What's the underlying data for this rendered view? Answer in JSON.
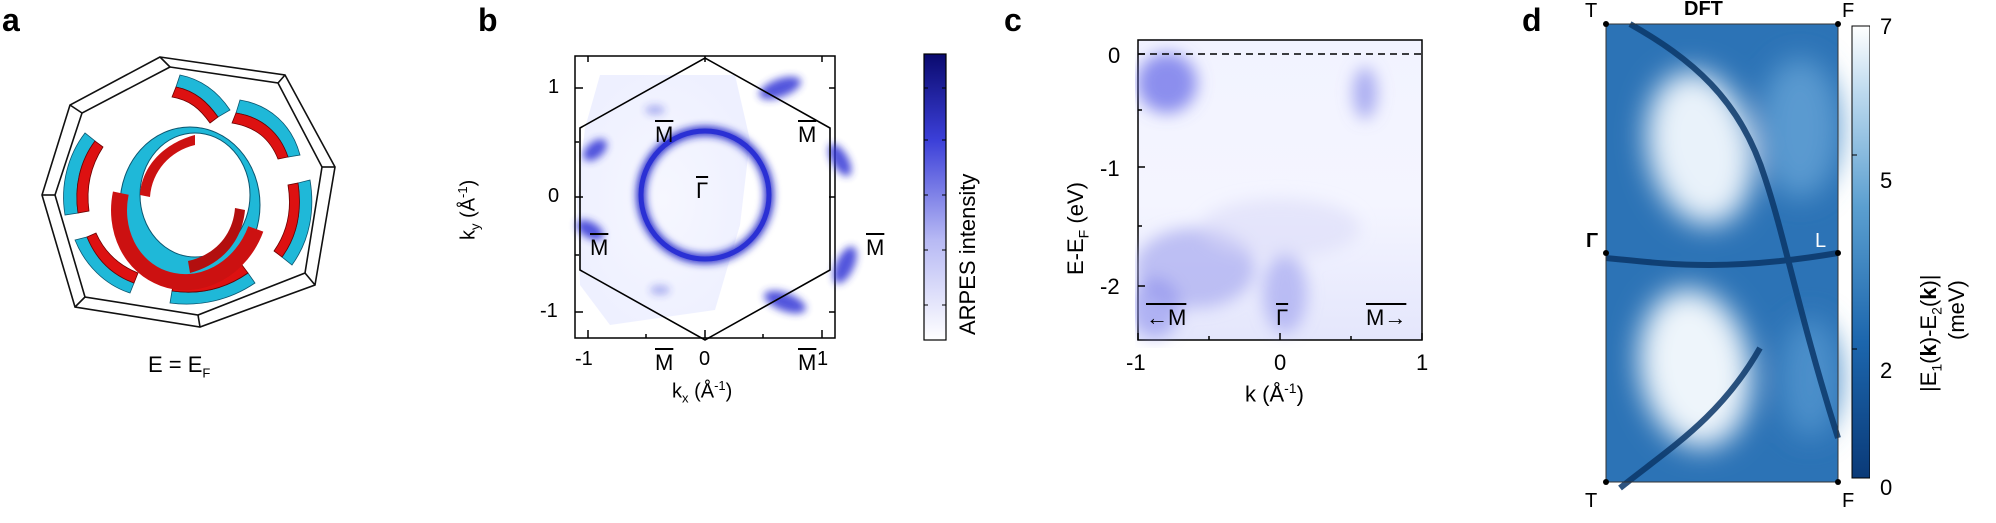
{
  "panels": {
    "a": {
      "letter": "a",
      "caption": "E = E",
      "caption_sub": "F"
    },
    "b": {
      "letter": "b",
      "xlabel_main": "k",
      "xlabel_sub": "x",
      "xlabel_unit": "(Å",
      "xlabel_sup": "-1",
      "xlabel_close": ")",
      "ylabel_main": "k",
      "ylabel_sub": "y",
      "ylabel_unit": "(Å",
      "ylabel_sup": "-1",
      "ylabel_close": ")",
      "xticks": [
        "-1",
        "0",
        "1"
      ],
      "yticks": [
        "1",
        "0",
        "-1"
      ],
      "colorbar_label": "ARPES intensity",
      "point_labels": {
        "gamma": "Γ",
        "m": "M"
      }
    },
    "c": {
      "letter": "c",
      "xlabel": "k (Å",
      "xlabel_sup": "-1",
      "xlabel_close": ")",
      "ylabel_main": "E-E",
      "ylabel_sub": "F",
      "ylabel_unit": " (eV)",
      "xticks": [
        "-1",
        "0",
        "1"
      ],
      "yticks": [
        "0",
        "-1",
        "-2"
      ],
      "bottom_labels": {
        "left": "←M",
        "center": "Γ",
        "right": "M→"
      }
    },
    "d": {
      "letter": "d",
      "title": "DFT",
      "corner_labels": {
        "top_left": "T",
        "top_right": "F",
        "mid_left": "Γ",
        "mid_right": "L",
        "bottom_left": "T",
        "bottom_right": "F"
      },
      "colorbar_ticks": [
        "7",
        "5",
        "2",
        "0"
      ],
      "colorbar_label_line1": "|E",
      "colorbar_label_line2": "(meV)"
    }
  },
  "chart_data": [
    {
      "type": "heatmap",
      "panel": "b",
      "xlabel": "kx (Å-1)",
      "ylabel": "ky (Å-1)",
      "xlim": [
        -1.2,
        1.2
      ],
      "ylim": [
        -1.3,
        1.25
      ],
      "xticks": [
        -1,
        0,
        1
      ],
      "yticks": [
        -1,
        0,
        1
      ],
      "colorbar": "ARPES intensity",
      "colors": {
        "low": "#ffffff",
        "high": "#0a0a8c"
      }
    },
    {
      "type": "heatmap",
      "panel": "c",
      "xlabel": "k (Å-1)",
      "ylabel": "E-EF (eV)",
      "xlim": [
        -1,
        1
      ],
      "ylim": [
        -2.5,
        0.2
      ],
      "xticks": [
        -1,
        0,
        1
      ],
      "yticks": [
        0,
        -1,
        -2
      ],
      "fermi_level_dashed": 0
    },
    {
      "type": "heatmap",
      "panel": "d",
      "title": "DFT",
      "colorbar_ticks": [
        7,
        5,
        2,
        0
      ],
      "colorbar_range": [
        0,
        7
      ],
      "colorbar_unit": "meV",
      "colors": {
        "low": "#0b3d7a",
        "high": "#ffffff"
      }
    }
  ]
}
